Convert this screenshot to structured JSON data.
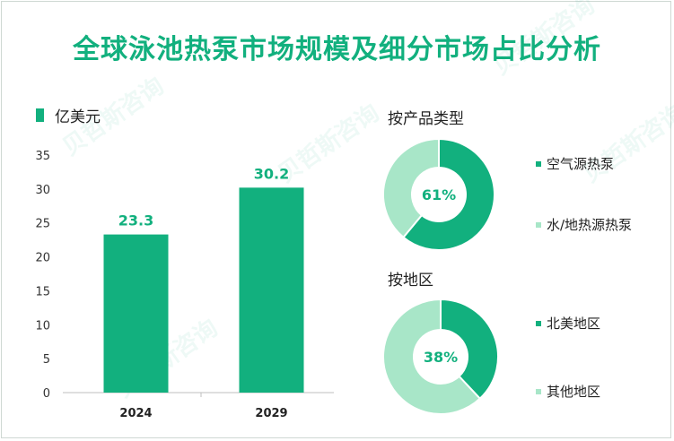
{
  "title": "全球泳池热泵市场规模及细分市场占比分析",
  "chart_data": [
    {
      "type": "bar",
      "categories": [
        "2024",
        "2029"
      ],
      "values": [
        23.3,
        30.2
      ],
      "legend": "亿美元",
      "ylim": [
        0,
        35
      ],
      "yticks": [
        0,
        5,
        10,
        15,
        20,
        25,
        30,
        35
      ],
      "color": "#12b07e"
    },
    {
      "type": "pie",
      "subtitle": "按产品类型",
      "center_label": "61%",
      "slices": [
        {
          "name": "空气源热泵",
          "value": 61,
          "color": "#12b07e"
        },
        {
          "name": "水/地热源热泵",
          "value": 39,
          "color": "#a8e6c8"
        }
      ]
    },
    {
      "type": "pie",
      "subtitle": "按地区",
      "center_label": "38%",
      "slices": [
        {
          "name": "北美地区",
          "value": 38,
          "color": "#12b07e"
        },
        {
          "name": "其他地区",
          "value": 62,
          "color": "#a8e6c8"
        }
      ]
    }
  ]
}
